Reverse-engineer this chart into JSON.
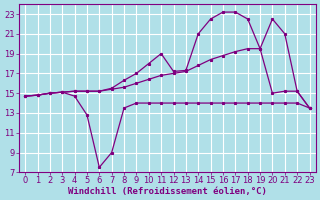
{
  "background_color": "#b0e0e8",
  "grid_color": "#ffffff",
  "line_color": "#800080",
  "xlabel": "Windchill (Refroidissement éolien,°C)",
  "xlabel_fontsize": 6.5,
  "tick_fontsize": 6,
  "xlim": [
    -0.5,
    23.5
  ],
  "ylim": [
    7,
    24
  ],
  "yticks": [
    7,
    9,
    11,
    13,
    15,
    17,
    19,
    21,
    23
  ],
  "xticks": [
    0,
    1,
    2,
    3,
    4,
    5,
    6,
    7,
    8,
    9,
    10,
    11,
    12,
    13,
    14,
    15,
    16,
    17,
    18,
    19,
    20,
    21,
    22,
    23
  ],
  "line1_x": [
    0,
    1,
    2,
    3,
    4,
    5,
    6,
    7,
    8,
    9,
    10,
    11,
    12,
    13,
    14,
    15,
    16,
    17,
    18,
    19,
    20,
    21,
    22,
    23
  ],
  "line1_y": [
    14.7,
    14.8,
    15.0,
    15.1,
    15.2,
    15.2,
    15.2,
    15.5,
    16.3,
    17.0,
    18.0,
    19.0,
    17.2,
    17.3,
    21.0,
    22.5,
    23.2,
    23.2,
    22.5,
    19.5,
    15.0,
    15.2,
    15.2,
    13.5
  ],
  "line2_x": [
    0,
    1,
    2,
    3,
    4,
    5,
    6,
    7,
    8,
    9,
    10,
    11,
    12,
    13,
    14,
    15,
    16,
    17,
    18,
    19,
    20,
    21,
    22,
    23
  ],
  "line2_y": [
    14.7,
    14.8,
    15.0,
    15.1,
    14.7,
    12.8,
    7.5,
    9.0,
    13.5,
    14.0,
    14.0,
    14.0,
    14.0,
    14.0,
    14.0,
    14.0,
    14.0,
    14.0,
    14.0,
    14.0,
    14.0,
    14.0,
    14.0,
    13.5
  ],
  "line3_x": [
    0,
    1,
    2,
    3,
    4,
    5,
    6,
    7,
    8,
    9,
    10,
    11,
    12,
    13,
    14,
    15,
    16,
    17,
    18,
    19,
    20,
    21,
    22,
    23
  ],
  "line3_y": [
    14.7,
    14.8,
    15.0,
    15.1,
    15.2,
    15.2,
    15.2,
    15.4,
    15.6,
    16.0,
    16.4,
    16.8,
    17.0,
    17.2,
    17.8,
    18.4,
    18.8,
    19.2,
    19.5,
    19.5,
    22.5,
    21.0,
    15.2,
    13.5
  ]
}
